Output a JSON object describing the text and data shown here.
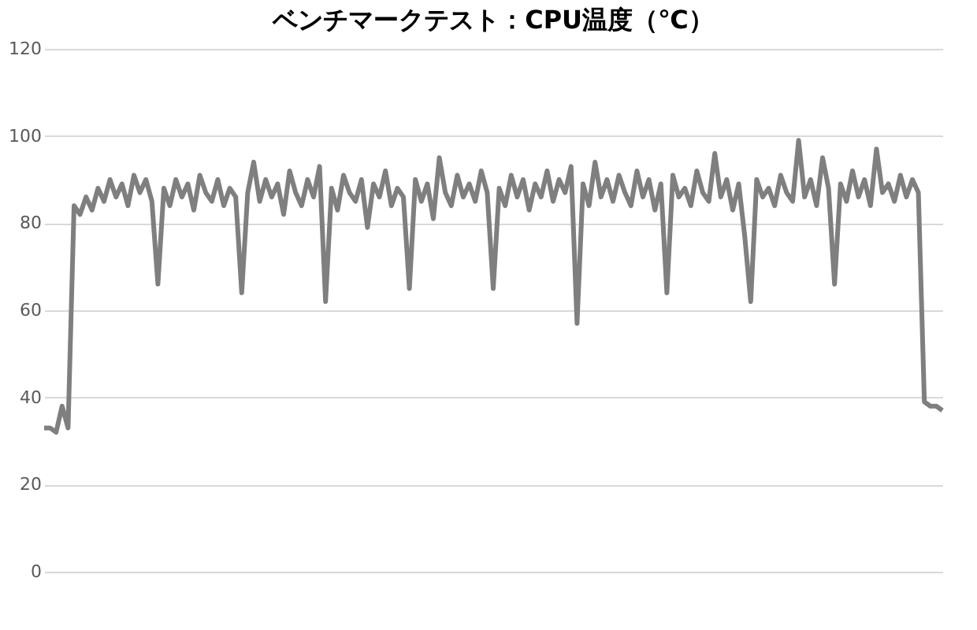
{
  "chart_data": {
    "type": "line",
    "title": "ベンチマークテスト：CPU温度（℃）",
    "categories": [
      null,
      null,
      null,
      null,
      null,
      null,
      null,
      null,
      null,
      null,
      null,
      null,
      null,
      null,
      null,
      null,
      null,
      null,
      null,
      null,
      null,
      null,
      null,
      null,
      null,
      null,
      null,
      null,
      null,
      null,
      null,
      null,
      null,
      null,
      null,
      null,
      null,
      null,
      null,
      null,
      null,
      null,
      null,
      null,
      null,
      null,
      null,
      null,
      null,
      null,
      null,
      null,
      null,
      null,
      null,
      null,
      null,
      null,
      null,
      null,
      null,
      null,
      null,
      null,
      null,
      null,
      null,
      null,
      null,
      null,
      null,
      null,
      null,
      null,
      null,
      null,
      null,
      null,
      null,
      null,
      null,
      null,
      null,
      null,
      null,
      null,
      null,
      null,
      null,
      null,
      null,
      null,
      null,
      null,
      null,
      null,
      null,
      null,
      null,
      null,
      null,
      null,
      null,
      null,
      null,
      null,
      null,
      null,
      null,
      null,
      null,
      null,
      null,
      null,
      null,
      null,
      null,
      null,
      null,
      null,
      null,
      null,
      null,
      null,
      null,
      null,
      null,
      null,
      null,
      null,
      null,
      null,
      null,
      null,
      null,
      null,
      null,
      null,
      null,
      null,
      null,
      null,
      null,
      null,
      null,
      null,
      null,
      null,
      null,
      null,
      null
    ],
    "series": [
      {
        "color": "#7f7f7f",
        "values": [
          33,
          33,
          32,
          38,
          33,
          84,
          82,
          86,
          83,
          88,
          85,
          90,
          86,
          89,
          84,
          91,
          87,
          90,
          85,
          66,
          88,
          84,
          90,
          86,
          89,
          83,
          91,
          87,
          85,
          90,
          84,
          88,
          86,
          64,
          87,
          94,
          85,
          90,
          86,
          89,
          82,
          92,
          87,
          84,
          90,
          86,
          93,
          62,
          88,
          83,
          91,
          87,
          85,
          90,
          79,
          89,
          86,
          92,
          84,
          88,
          86,
          65,
          90,
          85,
          89,
          81,
          95,
          87,
          84,
          91,
          86,
          89,
          85,
          92,
          87,
          65,
          88,
          84,
          91,
          86,
          90,
          83,
          89,
          86,
          92,
          85,
          90,
          87,
          93,
          57,
          89,
          84,
          94,
          86,
          90,
          85,
          91,
          87,
          84,
          92,
          86,
          90,
          83,
          89,
          64,
          91,
          86,
          88,
          84,
          92,
          87,
          85,
          96,
          86,
          90,
          83,
          89,
          77,
          62,
          90,
          86,
          88,
          84,
          91,
          87,
          85,
          99,
          86,
          90,
          84,
          95,
          88,
          66,
          89,
          85,
          92,
          86,
          90,
          84,
          97,
          87,
          89,
          85,
          91,
          86,
          90,
          87,
          39,
          38,
          38,
          37
        ]
      }
    ],
    "ylim": [
      0,
      120
    ],
    "yticks": [
      0,
      20,
      40,
      60,
      80,
      100,
      120
    ],
    "grid": "y",
    "tick_labels": "y",
    "marker": "none",
    "line_style": "solid"
  }
}
